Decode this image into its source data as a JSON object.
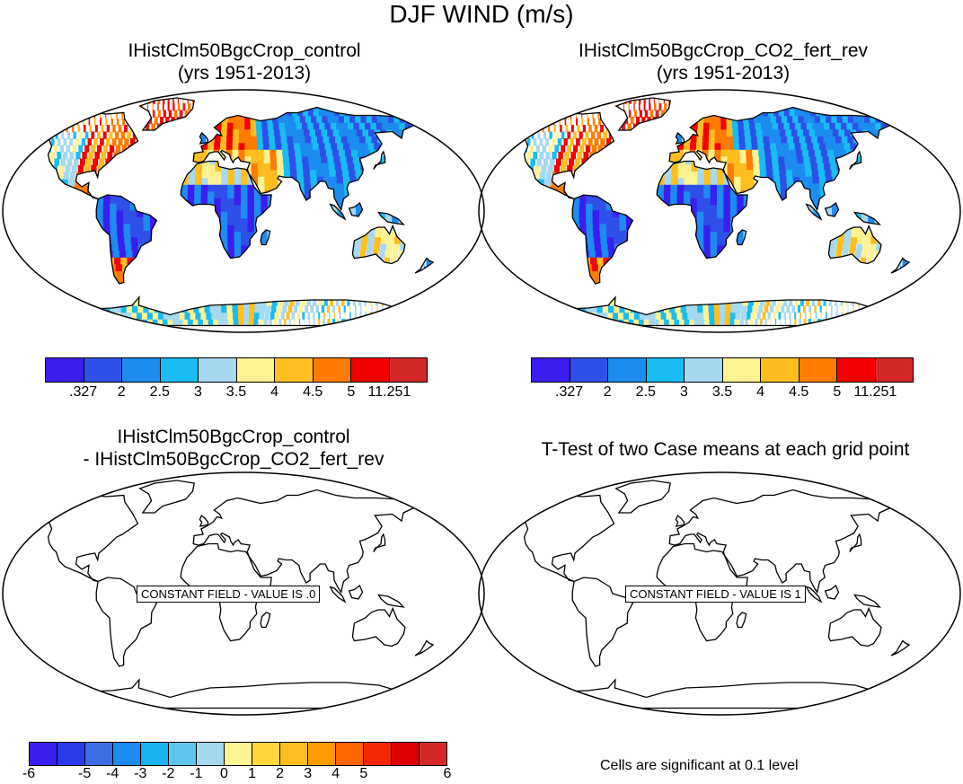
{
  "title": "DJF WIND (m/s)",
  "panels": {
    "top_left": {
      "title_line1": "IHistClm50BgcCrop_control",
      "title_line2": "(yrs 1951-2013)"
    },
    "top_right": {
      "title_line1": "IHistClm50BgcCrop_CO2_fert_rev",
      "title_line2": "(yrs 1951-2013)"
    },
    "bottom_left": {
      "title_line1": "IHistClm50BgcCrop_control",
      "title_line2": "- IHistClm50BgcCrop_CO2_fert_rev",
      "constant_label": "CONSTANT FIELD - VALUE IS .0"
    },
    "bottom_right": {
      "title_line1": "T-Test of two Case means at each grid point",
      "constant_label": "CONSTANT FIELD - VALUE IS 1"
    }
  },
  "colorbar_top": {
    "colors": [
      "#3a1ef0",
      "#2e50e8",
      "#1c8cf0",
      "#18bcf2",
      "#a6d8f0",
      "#fff290",
      "#ffbe1e",
      "#ff7c00",
      "#f40000",
      "#d42828"
    ],
    "labels": [
      ".327",
      "2",
      "2.5",
      "3",
      "3.5",
      "4",
      "4.5",
      "5",
      "11.251"
    ]
  },
  "colorbar_bottom": {
    "colors": [
      "#3a1ef0",
      "#2a3cea",
      "#3c6ee2",
      "#1c8cf0",
      "#18b2f2",
      "#5cc6ee",
      "#a6d8f0",
      "#fff290",
      "#ffd73c",
      "#ffbe1e",
      "#ff9a00",
      "#ff6400",
      "#f42800",
      "#dc0000",
      "#d42828"
    ],
    "labels": [
      "-6",
      "-5",
      "-4",
      "-3",
      "-2",
      "-1",
      "0",
      "1",
      "2",
      "3",
      "4",
      "5",
      "6"
    ]
  },
  "significance_note": "Cells are significant at 0.1 level"
}
